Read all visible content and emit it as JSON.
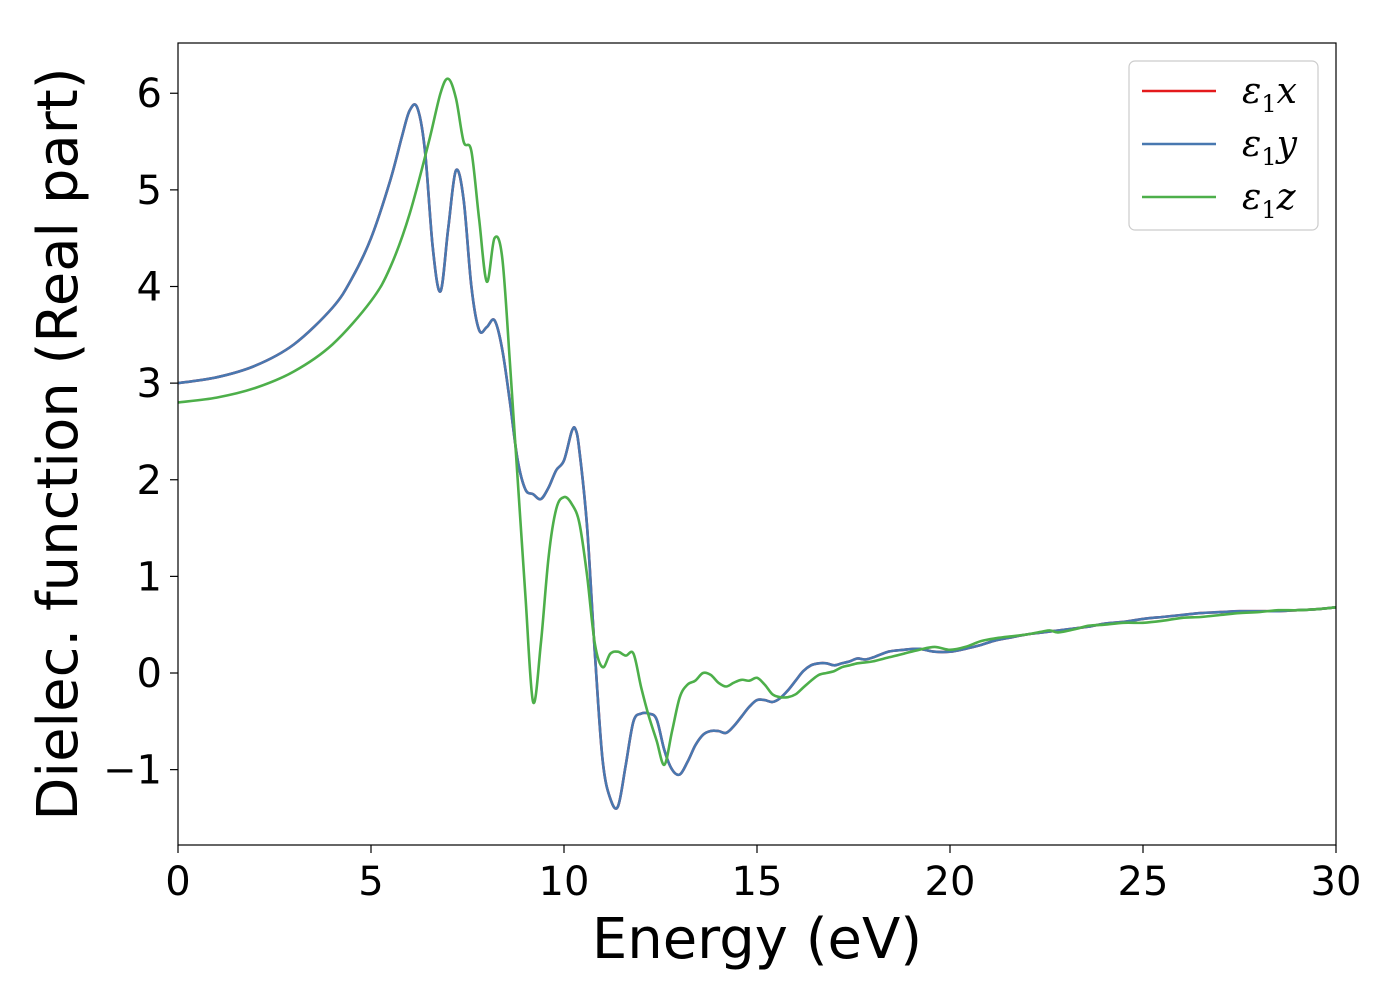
{
  "chart_data": {
    "type": "line",
    "title": "",
    "xlabel": "Energy (eV)",
    "ylabel": "Dielec. function (Real part)",
    "xlim": [
      0,
      30
    ],
    "ylim": [
      -1.78,
      6.52
    ],
    "xticks": [
      0,
      5,
      10,
      15,
      20,
      25,
      30
    ],
    "xtick_labels": [
      "0",
      "5",
      "10",
      "15",
      "20",
      "25",
      "30"
    ],
    "yticks": [
      -1,
      0,
      1,
      2,
      3,
      4,
      5,
      6
    ],
    "ytick_labels": [
      "−1",
      "0",
      "1",
      "2",
      "3",
      "4",
      "5",
      "6"
    ],
    "grid": false,
    "legend_position": "top-right",
    "series": [
      {
        "name": "ε₁x",
        "label_main": "ε",
        "label_sub": "1",
        "label_tail": "x",
        "color": "#e41a1c",
        "x": [
          0,
          1,
          2,
          3,
          4,
          4.5,
          5,
          5.5,
          5.8,
          6.0,
          6.2,
          6.4,
          6.6,
          6.8,
          7.0,
          7.2,
          7.4,
          7.6,
          7.8,
          8.0,
          8.2,
          8.4,
          8.6,
          8.8,
          9.0,
          9.2,
          9.4,
          9.6,
          9.8,
          10.0,
          10.2,
          10.3,
          10.4,
          10.6,
          10.8,
          11.0,
          11.2,
          11.4,
          11.6,
          11.8,
          12.0,
          12.2,
          12.4,
          12.6,
          12.8,
          13.0,
          13.2,
          13.4,
          13.6,
          13.8,
          14.0,
          14.2,
          14.4,
          14.6,
          14.8,
          15.0,
          15.2,
          15.4,
          15.6,
          15.8,
          16.0,
          16.2,
          16.4,
          16.6,
          16.8,
          17.0,
          17.2,
          17.4,
          17.6,
          17.8,
          18.0,
          18.4,
          18.8,
          19.2,
          19.6,
          20.0,
          20.4,
          20.8,
          21.2,
          21.6,
          22.0,
          22.4,
          22.8,
          23.2,
          23.6,
          24.0,
          24.5,
          25.0,
          25.5,
          26.0,
          26.5,
          27.0,
          27.5,
          28.0,
          28.5,
          29.0,
          29.5,
          30.0
        ],
        "y": [
          3.0,
          3.06,
          3.18,
          3.4,
          3.78,
          4.08,
          4.5,
          5.1,
          5.55,
          5.82,
          5.85,
          5.4,
          4.4,
          3.95,
          4.6,
          5.2,
          4.9,
          4.0,
          3.55,
          3.58,
          3.65,
          3.35,
          2.8,
          2.2,
          1.9,
          1.85,
          1.8,
          1.92,
          2.1,
          2.2,
          2.5,
          2.52,
          2.3,
          1.5,
          0.2,
          -0.9,
          -1.3,
          -1.38,
          -0.95,
          -0.5,
          -0.42,
          -0.42,
          -0.48,
          -0.8,
          -1.0,
          -1.05,
          -0.92,
          -0.75,
          -0.64,
          -0.6,
          -0.6,
          -0.62,
          -0.55,
          -0.45,
          -0.35,
          -0.28,
          -0.28,
          -0.3,
          -0.26,
          -0.18,
          -0.08,
          0.02,
          0.08,
          0.1,
          0.1,
          0.08,
          0.1,
          0.12,
          0.15,
          0.14,
          0.16,
          0.22,
          0.24,
          0.25,
          0.22,
          0.22,
          0.25,
          0.29,
          0.34,
          0.37,
          0.4,
          0.42,
          0.44,
          0.46,
          0.48,
          0.51,
          0.53,
          0.56,
          0.58,
          0.6,
          0.62,
          0.63,
          0.64,
          0.64,
          0.64,
          0.65,
          0.66,
          0.68
        ]
      },
      {
        "name": "ε₁y",
        "label_main": "ε",
        "label_sub": "1",
        "label_tail": "y",
        "color": "#4878b0",
        "x": [
          0,
          1,
          2,
          3,
          4,
          4.5,
          5,
          5.5,
          5.8,
          6.0,
          6.2,
          6.4,
          6.6,
          6.8,
          7.0,
          7.2,
          7.4,
          7.6,
          7.8,
          8.0,
          8.2,
          8.4,
          8.6,
          8.8,
          9.0,
          9.2,
          9.4,
          9.6,
          9.8,
          10.0,
          10.2,
          10.3,
          10.4,
          10.6,
          10.8,
          11.0,
          11.2,
          11.4,
          11.6,
          11.8,
          12.0,
          12.2,
          12.4,
          12.6,
          12.8,
          13.0,
          13.2,
          13.4,
          13.6,
          13.8,
          14.0,
          14.2,
          14.4,
          14.6,
          14.8,
          15.0,
          15.2,
          15.4,
          15.6,
          15.8,
          16.0,
          16.2,
          16.4,
          16.6,
          16.8,
          17.0,
          17.2,
          17.4,
          17.6,
          17.8,
          18.0,
          18.4,
          18.8,
          19.2,
          19.6,
          20.0,
          20.4,
          20.8,
          21.2,
          21.6,
          22.0,
          22.4,
          22.8,
          23.2,
          23.6,
          24.0,
          24.5,
          25.0,
          25.5,
          26.0,
          26.5,
          27.0,
          27.5,
          28.0,
          28.5,
          29.0,
          29.5,
          30.0
        ],
        "y": [
          3.0,
          3.06,
          3.18,
          3.4,
          3.78,
          4.08,
          4.5,
          5.1,
          5.55,
          5.82,
          5.85,
          5.4,
          4.4,
          3.95,
          4.6,
          5.2,
          4.9,
          4.0,
          3.55,
          3.58,
          3.65,
          3.35,
          2.8,
          2.2,
          1.9,
          1.85,
          1.8,
          1.92,
          2.1,
          2.2,
          2.5,
          2.52,
          2.3,
          1.5,
          0.2,
          -0.9,
          -1.3,
          -1.38,
          -0.95,
          -0.5,
          -0.42,
          -0.42,
          -0.48,
          -0.8,
          -1.0,
          -1.05,
          -0.92,
          -0.75,
          -0.64,
          -0.6,
          -0.6,
          -0.62,
          -0.55,
          -0.45,
          -0.35,
          -0.28,
          -0.28,
          -0.3,
          -0.26,
          -0.18,
          -0.08,
          0.02,
          0.08,
          0.1,
          0.1,
          0.08,
          0.1,
          0.12,
          0.15,
          0.14,
          0.16,
          0.22,
          0.24,
          0.25,
          0.22,
          0.22,
          0.25,
          0.29,
          0.34,
          0.37,
          0.4,
          0.42,
          0.44,
          0.46,
          0.48,
          0.51,
          0.53,
          0.56,
          0.58,
          0.6,
          0.62,
          0.63,
          0.64,
          0.64,
          0.64,
          0.65,
          0.66,
          0.68
        ]
      },
      {
        "name": "ε₁z",
        "label_main": "ε",
        "label_sub": "1",
        "label_tail": "z",
        "color": "#4daf4a",
        "x": [
          0,
          1,
          2,
          3,
          4,
          5,
          5.5,
          6.0,
          6.5,
          6.8,
          7.0,
          7.2,
          7.4,
          7.6,
          7.8,
          8.0,
          8.2,
          8.4,
          8.6,
          8.8,
          9.0,
          9.2,
          9.4,
          9.6,
          9.8,
          10.0,
          10.2,
          10.4,
          10.6,
          10.8,
          11.0,
          11.2,
          11.4,
          11.6,
          11.8,
          12.0,
          12.2,
          12.4,
          12.6,
          12.8,
          13.0,
          13.2,
          13.4,
          13.6,
          13.8,
          14.0,
          14.2,
          14.4,
          14.6,
          14.8,
          15.0,
          15.2,
          15.4,
          15.6,
          15.8,
          16.0,
          16.2,
          16.4,
          16.6,
          16.8,
          17.0,
          17.2,
          17.4,
          17.6,
          17.8,
          18.0,
          18.4,
          18.8,
          19.2,
          19.6,
          20.0,
          20.4,
          20.8,
          21.2,
          21.6,
          22.0,
          22.4,
          22.6,
          22.8,
          23.2,
          23.6,
          24.0,
          24.5,
          25.0,
          25.5,
          26.0,
          26.5,
          27.0,
          27.5,
          28.0,
          28.5,
          29.0,
          29.5,
          30.0
        ],
        "y": [
          2.8,
          2.85,
          2.95,
          3.12,
          3.4,
          3.85,
          4.2,
          4.75,
          5.5,
          6.0,
          6.15,
          5.95,
          5.5,
          5.4,
          4.7,
          4.05,
          4.5,
          4.3,
          3.2,
          2.0,
          0.8,
          -0.3,
          0.3,
          1.2,
          1.7,
          1.82,
          1.75,
          1.55,
          1.0,
          0.3,
          0.06,
          0.2,
          0.22,
          0.18,
          0.2,
          -0.15,
          -0.45,
          -0.7,
          -0.95,
          -0.6,
          -0.25,
          -0.12,
          -0.08,
          0.0,
          -0.02,
          -0.1,
          -0.14,
          -0.1,
          -0.07,
          -0.08,
          -0.05,
          -0.12,
          -0.22,
          -0.25,
          -0.25,
          -0.22,
          -0.15,
          -0.08,
          -0.02,
          0.0,
          0.02,
          0.06,
          0.08,
          0.1,
          0.11,
          0.12,
          0.16,
          0.2,
          0.24,
          0.27,
          0.24,
          0.27,
          0.33,
          0.36,
          0.38,
          0.4,
          0.43,
          0.44,
          0.42,
          0.45,
          0.49,
          0.5,
          0.52,
          0.52,
          0.54,
          0.57,
          0.58,
          0.6,
          0.62,
          0.63,
          0.65,
          0.65,
          0.66,
          0.68
        ]
      }
    ]
  }
}
